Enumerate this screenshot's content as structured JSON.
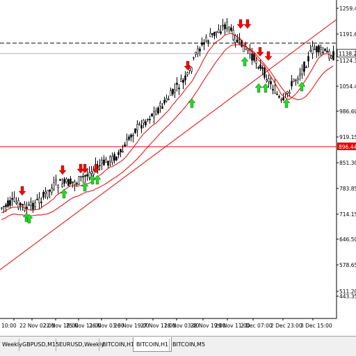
{
  "colors": {
    "background": "#ffffff",
    "candle": "#000000",
    "ma_line": "#e60000",
    "horizontal_line": "#e60000",
    "dashed_line": "#000000",
    "arrow_down": "#ff0000",
    "arrow_up": "#22dd22",
    "price_marker_bg": "#e60000",
    "price_marker_text": "#ffffff"
  },
  "icons": {
    "arrow_down": "arrow-down-icon",
    "arrow_up": "arrow-up-icon"
  },
  "price_axis": {
    "labels": [
      "1259.45",
      "1191.60",
      "1124.15",
      "1054.45",
      "986.60",
      "919.15",
      "851.30",
      "783.85",
      "714.15",
      "646.50",
      "578.65",
      "511.20",
      "443.35"
    ]
  },
  "current_price_label": "1138.20",
  "horizontal_level_label": "896.44",
  "time_axis": {
    "labels": [
      "10:00",
      "22 Nov 02:00",
      "22 Nov 18:00",
      "25 Nov 11:00",
      "26 Nov 03:00",
      "26 Nov 19:00",
      "27 Nov 11:00",
      "28 Nov 03:00",
      "28 Nov 19:00",
      "29 Nov 11:00",
      "2 Dec 07:00",
      "2 Dec 23:00",
      "3 Dec 15:00"
    ]
  },
  "tabs": [
    {
      "label": "Weekly",
      "active": false
    },
    {
      "label": "GBPUSD,M15",
      "active": false
    },
    {
      "label": "EURUSD,Weekly",
      "active": false
    },
    {
      "label": "BITCOIN,H1",
      "active": false
    },
    {
      "label": "BITCOIN,H1",
      "active": true
    },
    {
      "label": "BITCOIN,M5",
      "active": false
    }
  ]
}
